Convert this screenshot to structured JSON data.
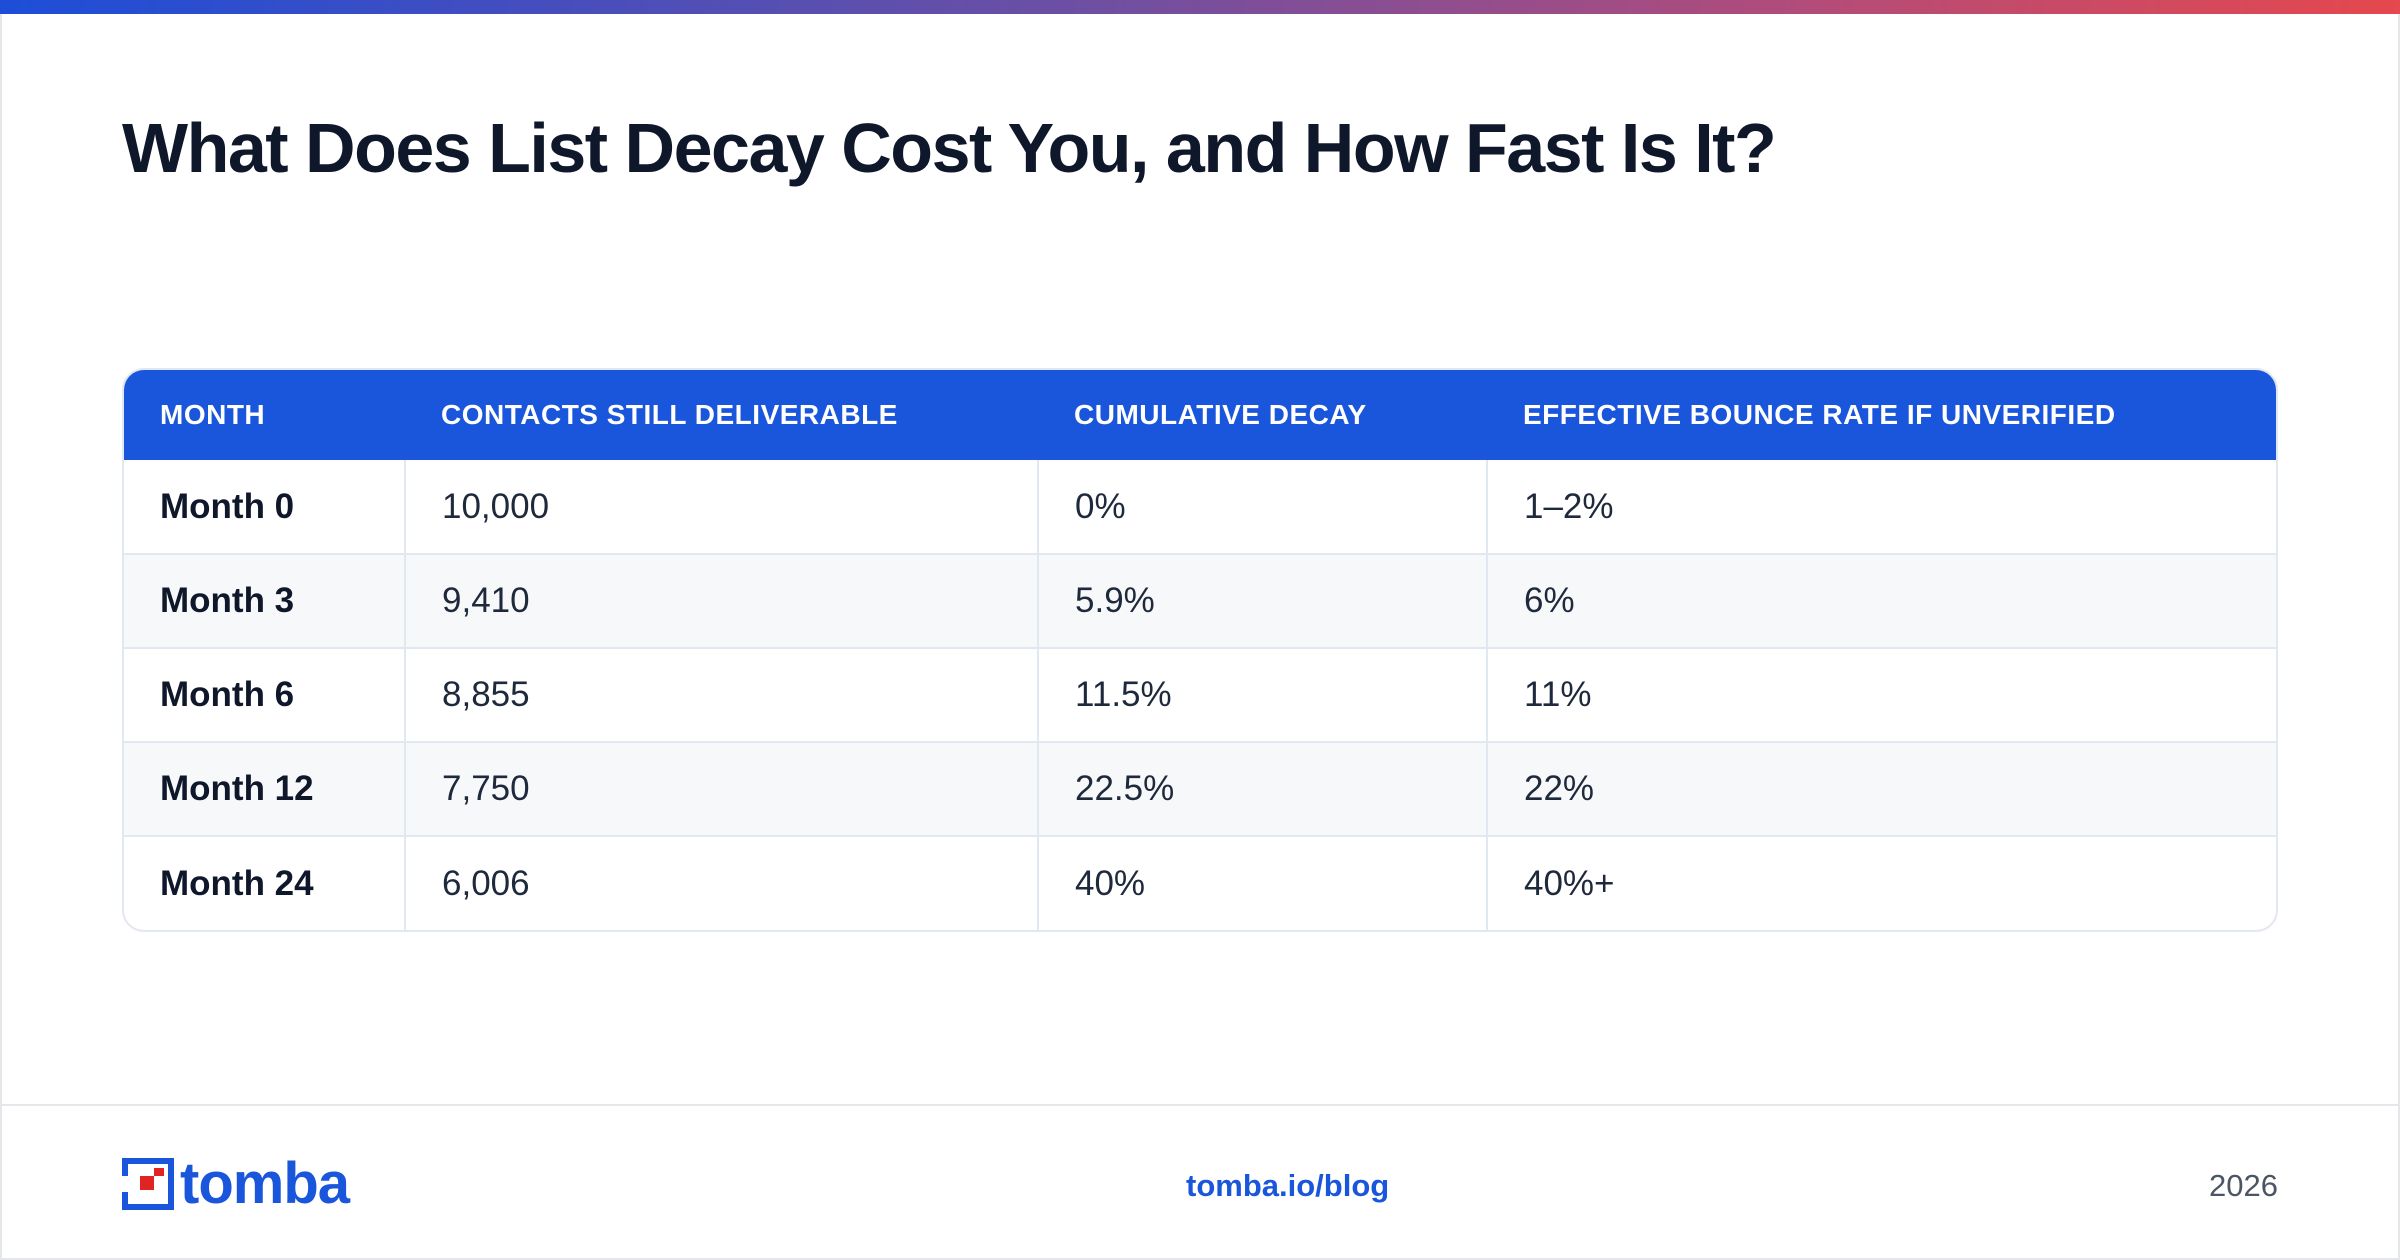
{
  "header": {
    "title": "What Does List Decay Cost You, and How Fast Is It?"
  },
  "table": {
    "columns": [
      "MONTH",
      "CONTACTS STILL DELIVERABLE",
      "CUMULATIVE DECAY",
      "EFFECTIVE BOUNCE RATE IF UNVERIFIED"
    ],
    "rows": [
      [
        "Month 0",
        "10,000",
        "0%",
        "1–2%"
      ],
      [
        "Month 3",
        "9,410",
        "5.9%",
        "6%"
      ],
      [
        "Month 6",
        "8,855",
        "11.5%",
        "11%"
      ],
      [
        "Month 12",
        "7,750",
        "22.5%",
        "22%"
      ],
      [
        "Month 24",
        "6,006",
        "40%",
        "40%+"
      ]
    ]
  },
  "footer": {
    "logo_text": "tomba",
    "logo_icon": "tomba-logo-icon",
    "link": "tomba.io/blog",
    "year": "2026"
  },
  "colors": {
    "accent": "#1a56db",
    "header_bg": "#1a56db",
    "title": "#0f172a",
    "gradient": [
      "#1d4ed8",
      "#6d4fa3",
      "#b24c7a",
      "#e5484d"
    ]
  }
}
